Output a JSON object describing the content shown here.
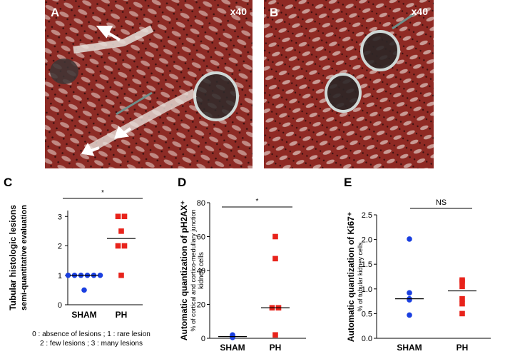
{
  "panel_A": {
    "letter": "A",
    "magnification": "x40"
  },
  "panel_B": {
    "letter": "B",
    "magnification": "x40"
  },
  "chart_data": [
    {
      "panel": "C",
      "type": "scatter",
      "ylabel": "Tubular histologic lesions",
      "ylabel_sub": "semi-quantitative evaluation",
      "categories": [
        "SHAM",
        "PH"
      ],
      "yticks": [
        "0",
        "1",
        "2",
        "3"
      ],
      "ylim": [
        0,
        3.2
      ],
      "significance": "*",
      "series": [
        {
          "category": "SHAM",
          "marker": "circle",
          "color": "#1a3fe0",
          "values": [
            1,
            1,
            1,
            1,
            1,
            1,
            0.5
          ],
          "median": 1
        },
        {
          "category": "PH",
          "marker": "square",
          "color": "#e8231b",
          "values": [
            3,
            3,
            2.5,
            2,
            2,
            1
          ],
          "median": 2.25
        }
      ],
      "footnote_1": "0 : absence of lesions ; 1 : rare lesion",
      "footnote_2": "2 : few lesions ; 3 : many lesions"
    },
    {
      "panel": "D",
      "type": "scatter",
      "ylabel": "Automatic quantization of pH2AX⁺",
      "ylabel_sub": "% of cortical and cortico-medullary junction",
      "ylabel_sub2": "kidney cells",
      "categories": [
        "SHAM",
        "PH"
      ],
      "yticks": [
        "0",
        "20",
        "40",
        "60",
        "80"
      ],
      "ylim": [
        0,
        80
      ],
      "significance": "*",
      "series": [
        {
          "category": "SHAM",
          "marker": "circle",
          "color": "#1a3fe0",
          "values": [
            0.5,
            1,
            2,
            1.5,
            0.8
          ],
          "median": 1
        },
        {
          "category": "PH",
          "marker": "square",
          "color": "#e8231b",
          "values": [
            60,
            47,
            18,
            18,
            2
          ],
          "median": 18
        }
      ]
    },
    {
      "panel": "E",
      "type": "scatter",
      "ylabel": "Automatic quantization of Ki67⁺",
      "ylabel_sub": "% of tubular kidney cells",
      "categories": [
        "SHAM",
        "PH"
      ],
      "yticks": [
        "0.0",
        "0.5",
        "1.0",
        "1.5",
        "2.0",
        "2.5"
      ],
      "ylim": [
        0,
        2.5
      ],
      "significance": "NS",
      "series": [
        {
          "category": "SHAM",
          "marker": "circle",
          "color": "#1a3fe0",
          "values": [
            2.01,
            0.92,
            0.8,
            0.78,
            0.47
          ],
          "median": 0.8
        },
        {
          "category": "PH",
          "marker": "square",
          "color": "#e8231b",
          "values": [
            1.18,
            1.15,
            1.05,
            0.8,
            0.7,
            0.5
          ],
          "median": 0.96
        }
      ]
    }
  ]
}
